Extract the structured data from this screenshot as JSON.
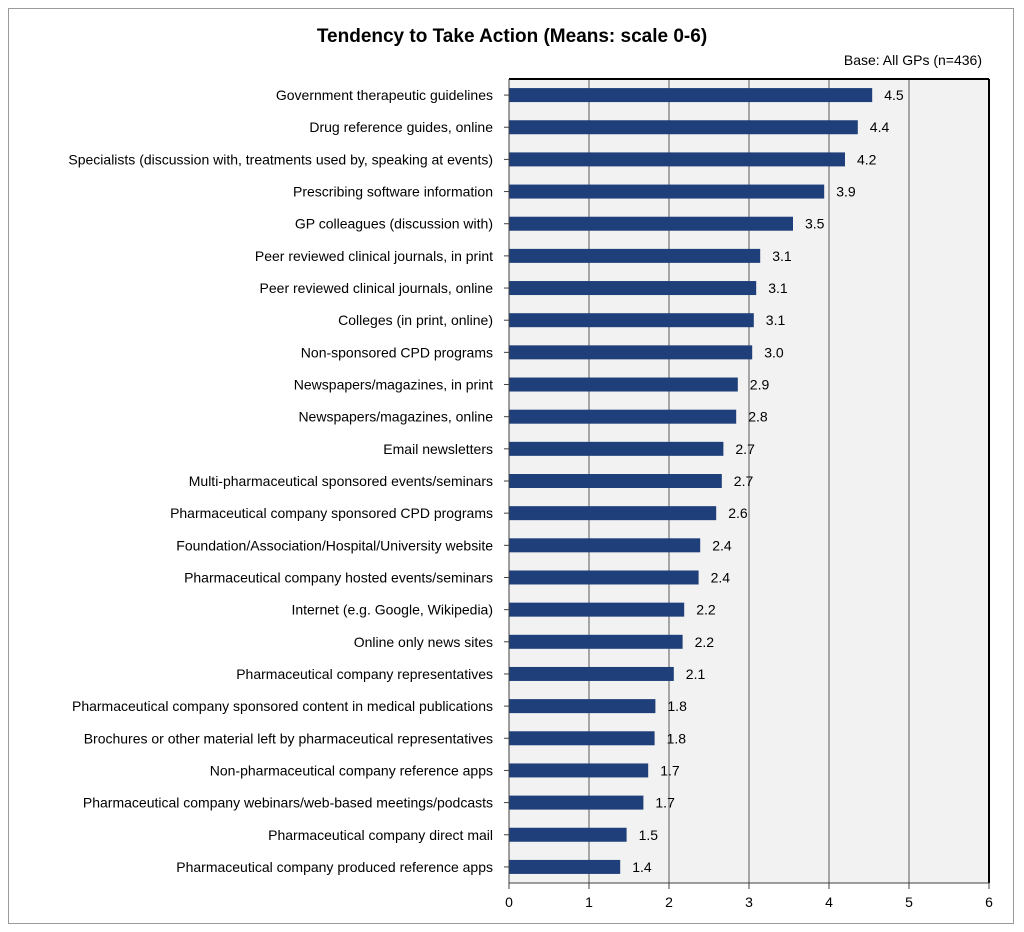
{
  "chart_data": {
    "type": "bar",
    "orientation": "horizontal",
    "title": "Tendency to Take Action (Means: scale 0-6)",
    "subtitle": "Base: All GPs (n=436)",
    "xlabel": "",
    "ylabel": "",
    "xlim": [
      0,
      6
    ],
    "xticks": [
      0,
      1,
      2,
      3,
      4,
      5,
      6
    ],
    "grid": true,
    "legend": "none",
    "bar_color": "#1f3f7a",
    "categories": [
      "Government therapeutic guidelines",
      "Drug reference guides, online",
      "Specialists (discussion with, treatments used by, speaking at events)",
      "Prescribing software information",
      "GP colleagues (discussion with)",
      "Peer reviewed clinical journals, in print",
      "Peer reviewed clinical journals, online",
      "Colleges (in print, online)",
      "Non-sponsored CPD programs",
      "Newspapers/magazines, in print",
      "Newspapers/magazines, online",
      "Email newsletters",
      "Multi-pharmaceutical sponsored events/seminars",
      "Pharmaceutical company sponsored CPD programs",
      "Foundation/Association/Hospital/University website",
      "Pharmaceutical company hosted events/seminars",
      "Internet (e.g. Google, Wikipedia)",
      "Online only news sites",
      "Pharmaceutical company representatives",
      "Pharmaceutical company sponsored content in medical publications",
      "Brochures or other material left by pharmaceutical representatives",
      "Non-pharmaceutical company reference apps",
      "Pharmaceutical company webinars/web-based meetings/podcasts",
      "Pharmaceutical company direct mail",
      "Pharmaceutical company produced reference apps"
    ],
    "values": [
      4.54,
      4.36,
      4.2,
      3.94,
      3.55,
      3.14,
      3.09,
      3.06,
      3.04,
      2.86,
      2.84,
      2.68,
      2.66,
      2.59,
      2.39,
      2.37,
      2.19,
      2.17,
      2.06,
      1.83,
      1.82,
      1.74,
      1.68,
      1.47,
      1.39
    ],
    "value_labels": [
      "4.5",
      "4.4",
      "4.2",
      "3.9",
      "3.5",
      "3.1",
      "3.1",
      "3.1",
      "3.0",
      "2.9",
      "2.8",
      "2.7",
      "2.7",
      "2.6",
      "2.4",
      "2.4",
      "2.2",
      "2.2",
      "2.1",
      "1.8",
      "1.8",
      "1.7",
      "1.7",
      "1.5",
      "1.4"
    ]
  }
}
